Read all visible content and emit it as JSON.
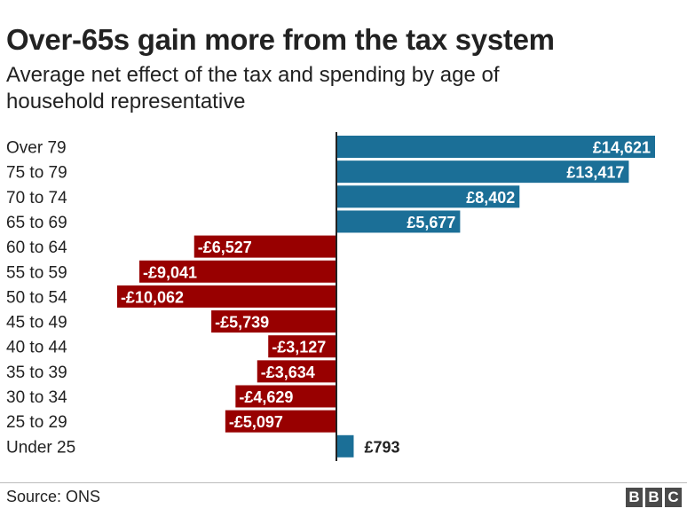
{
  "title": "Over-65s gain more from the tax system",
  "subtitle": "Average net effect of the tax and spending by age of household representative",
  "source": "Source: ONS",
  "logo": {
    "text": "BBC",
    "letters": [
      "B",
      "B",
      "C"
    ]
  },
  "colors": {
    "positive": "#1b6f97",
    "negative": "#980000",
    "axis": "#222222",
    "text": "#222222"
  },
  "chart_data": {
    "type": "bar",
    "orientation": "horizontal",
    "title": "Over-65s gain more from the tax system",
    "subtitle": "Average net effect of the tax and spending by age of household representative",
    "categories": [
      "Over 79",
      "75 to 79",
      "70 to 74",
      "65 to 69",
      "60 to 64",
      "55 to 59",
      "50 to 54",
      "45 to 49",
      "40 to 44",
      "35 to 39",
      "30 to 34",
      "25 to 29",
      "Under 25"
    ],
    "values": [
      14621,
      13417,
      8402,
      5677,
      -6527,
      -9041,
      -10062,
      -5739,
      -3127,
      -3634,
      -4629,
      -5097,
      793
    ],
    "labels": [
      "£14,621",
      "£13,417",
      "£8,402",
      "£5,677",
      "-£6,527",
      "-£9,041",
      "-£10,062",
      "-£5,739",
      "-£3,127",
      "-£3,634",
      "-£4,629",
      "-£5,097",
      "£793"
    ],
    "xlim": [
      -10062,
      14621
    ],
    "grid": false,
    "legend": "none"
  }
}
